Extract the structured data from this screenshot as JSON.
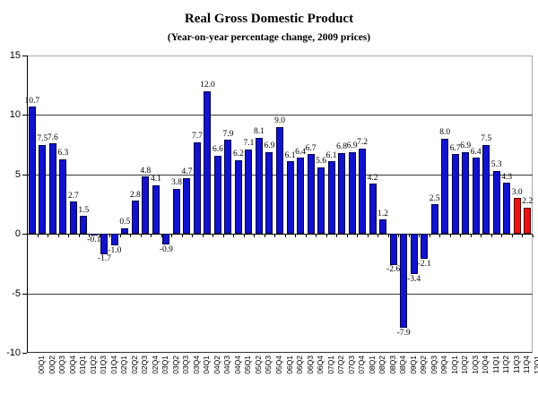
{
  "chart_data": {
    "type": "bar",
    "title": "Real Gross Domestic Product",
    "subtitle": "(Year-on-year percentage change, 2009 prices)",
    "categories": [
      "00Q1",
      "00Q2",
      "00Q3",
      "00Q4",
      "01Q1",
      "01Q2",
      "01Q3",
      "01Q4",
      "02Q1",
      "02Q2",
      "02Q3",
      "02Q4",
      "03Q1",
      "03Q2",
      "03Q3",
      "03Q4",
      "04Q1",
      "04Q2",
      "04Q3",
      "04Q4",
      "05Q1",
      "05Q2",
      "05Q3",
      "05Q4",
      "06Q1",
      "06Q2",
      "06Q3",
      "06Q4",
      "07Q1",
      "07Q2",
      "07Q3",
      "07Q4",
      "08Q1",
      "08Q2",
      "08Q3",
      "08Q4",
      "09Q1",
      "09Q2",
      "09Q3",
      "09Q4",
      "10Q1",
      "10Q2",
      "10Q3",
      "10Q4",
      "11Q1",
      "11Q2",
      "11Q3",
      "11Q4",
      "12Q1"
    ],
    "values": [
      10.7,
      7.5,
      7.6,
      6.3,
      2.7,
      1.5,
      -0.1,
      -1.7,
      -1.0,
      0.5,
      2.8,
      4.8,
      4.1,
      -0.9,
      3.8,
      4.7,
      7.7,
      12.0,
      6.6,
      7.9,
      6.2,
      7.1,
      8.1,
      6.9,
      9.0,
      6.1,
      6.4,
      6.7,
      5.6,
      6.1,
      6.8,
      6.9,
      7.2,
      4.2,
      1.2,
      -2.6,
      -7.9,
      -3.4,
      -2.1,
      2.5,
      8.0,
      6.7,
      6.9,
      6.4,
      7.5,
      5.3,
      4.3,
      3.0,
      2.2
    ],
    "highlight_categories": [
      "11Q4",
      "12Q1"
    ],
    "colors": {
      "bar_fill": "#1212cc",
      "bar_border": "#00004d",
      "highlight_fill": "#ee1111",
      "highlight_border": "#550000"
    },
    "ylim": [
      -10,
      15
    ],
    "yticks": [
      15,
      10,
      5,
      0,
      -5,
      -10
    ],
    "grid": true,
    "legend": "none",
    "xlabel": "",
    "ylabel": ""
  }
}
